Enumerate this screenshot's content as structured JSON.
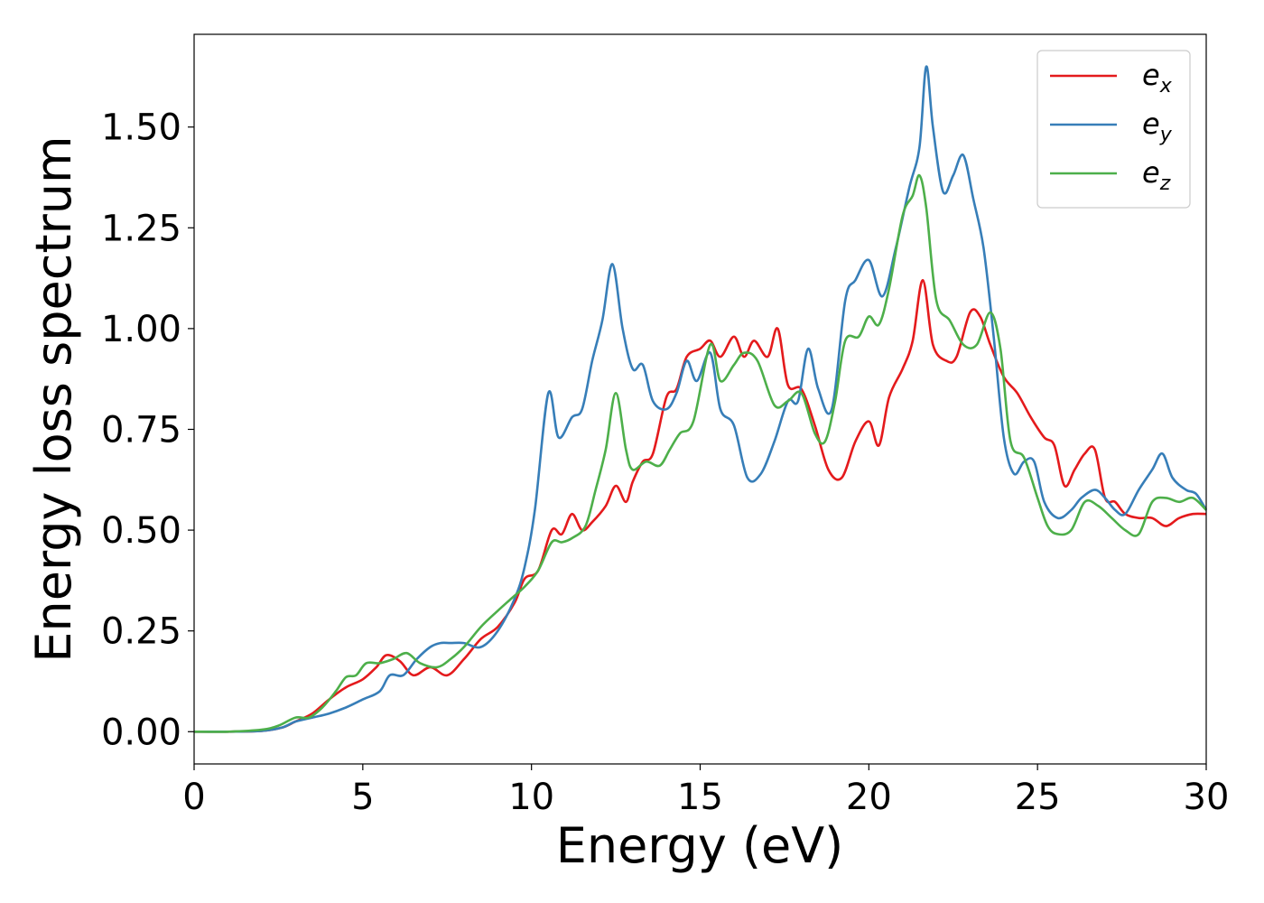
{
  "chart_data": {
    "type": "line",
    "xlabel": "Energy (eV)",
    "ylabel": "Energy loss spectrum",
    "xlim": [
      0,
      30
    ],
    "ylim": [
      -0.08,
      1.73
    ],
    "xticks": [
      0,
      5,
      10,
      15,
      20,
      25,
      30
    ],
    "yticks": [
      0.0,
      0.25,
      0.5,
      0.75,
      1.0,
      1.25,
      1.5
    ],
    "xtick_labels": [
      "0",
      "5",
      "10",
      "15",
      "20",
      "25",
      "30"
    ],
    "ytick_labels": [
      "0.00",
      "0.25",
      "0.50",
      "0.75",
      "1.00",
      "1.25",
      "1.50"
    ],
    "grid": false,
    "legend_position": "top-right",
    "series": [
      {
        "name": "e",
        "sub": "x",
        "color": "#e41a1c",
        "points": [
          [
            0,
            0
          ],
          [
            1,
            0
          ],
          [
            2,
            0.002
          ],
          [
            2.6,
            0.01
          ],
          [
            3,
            0.025
          ],
          [
            3.5,
            0.045
          ],
          [
            4,
            0.08
          ],
          [
            4.5,
            0.11
          ],
          [
            5,
            0.13
          ],
          [
            5.4,
            0.16
          ],
          [
            5.7,
            0.19
          ],
          [
            6.1,
            0.175
          ],
          [
            6.5,
            0.14
          ],
          [
            7,
            0.16
          ],
          [
            7.5,
            0.14
          ],
          [
            8,
            0.18
          ],
          [
            8.5,
            0.23
          ],
          [
            9,
            0.26
          ],
          [
            9.5,
            0.32
          ],
          [
            9.8,
            0.38
          ],
          [
            10.2,
            0.4
          ],
          [
            10.6,
            0.5
          ],
          [
            10.9,
            0.49
          ],
          [
            11.2,
            0.54
          ],
          [
            11.5,
            0.5
          ],
          [
            11.8,
            0.52
          ],
          [
            12.2,
            0.56
          ],
          [
            12.5,
            0.61
          ],
          [
            12.8,
            0.57
          ],
          [
            13,
            0.62
          ],
          [
            13.3,
            0.67
          ],
          [
            13.6,
            0.69
          ],
          [
            14,
            0.83
          ],
          [
            14.3,
            0.85
          ],
          [
            14.6,
            0.93
          ],
          [
            15,
            0.95
          ],
          [
            15.3,
            0.97
          ],
          [
            15.6,
            0.93
          ],
          [
            16,
            0.98
          ],
          [
            16.3,
            0.93
          ],
          [
            16.6,
            0.97
          ],
          [
            17,
            0.93
          ],
          [
            17.3,
            1.0
          ],
          [
            17.6,
            0.86
          ],
          [
            18,
            0.85
          ],
          [
            18.4,
            0.76
          ],
          [
            18.8,
            0.65
          ],
          [
            19.2,
            0.63
          ],
          [
            19.6,
            0.72
          ],
          [
            20,
            0.77
          ],
          [
            20.3,
            0.71
          ],
          [
            20.6,
            0.83
          ],
          [
            21,
            0.9
          ],
          [
            21.3,
            0.97
          ],
          [
            21.6,
            1.12
          ],
          [
            21.9,
            0.96
          ],
          [
            22.3,
            0.92
          ],
          [
            22.6,
            0.93
          ],
          [
            23,
            1.04
          ],
          [
            23.3,
            1.03
          ],
          [
            23.6,
            0.96
          ],
          [
            24,
            0.88
          ],
          [
            24.4,
            0.84
          ],
          [
            24.8,
            0.78
          ],
          [
            25.2,
            0.73
          ],
          [
            25.5,
            0.71
          ],
          [
            25.8,
            0.61
          ],
          [
            26.1,
            0.65
          ],
          [
            26.4,
            0.69
          ],
          [
            26.7,
            0.7
          ],
          [
            27,
            0.58
          ],
          [
            27.3,
            0.57
          ],
          [
            27.6,
            0.54
          ],
          [
            28,
            0.53
          ],
          [
            28.4,
            0.53
          ],
          [
            28.8,
            0.51
          ],
          [
            29.2,
            0.53
          ],
          [
            29.6,
            0.54
          ],
          [
            30,
            0.54
          ]
        ]
      },
      {
        "name": "e",
        "sub": "y",
        "color": "#377eb8",
        "points": [
          [
            0,
            0
          ],
          [
            1,
            0
          ],
          [
            2,
            0.002
          ],
          [
            2.6,
            0.01
          ],
          [
            3,
            0.025
          ],
          [
            3.5,
            0.035
          ],
          [
            4,
            0.045
          ],
          [
            4.5,
            0.06
          ],
          [
            5,
            0.08
          ],
          [
            5.5,
            0.1
          ],
          [
            5.8,
            0.14
          ],
          [
            6.2,
            0.14
          ],
          [
            6.6,
            0.18
          ],
          [
            7,
            0.21
          ],
          [
            7.3,
            0.22
          ],
          [
            7.6,
            0.22
          ],
          [
            8,
            0.22
          ],
          [
            8.5,
            0.21
          ],
          [
            9,
            0.25
          ],
          [
            9.5,
            0.33
          ],
          [
            9.8,
            0.41
          ],
          [
            10.1,
            0.55
          ],
          [
            10.5,
            0.84
          ],
          [
            10.8,
            0.73
          ],
          [
            11.2,
            0.78
          ],
          [
            11.5,
            0.8
          ],
          [
            11.8,
            0.92
          ],
          [
            12.1,
            1.02
          ],
          [
            12.4,
            1.16
          ],
          [
            12.7,
            1.0
          ],
          [
            13,
            0.9
          ],
          [
            13.3,
            0.91
          ],
          [
            13.6,
            0.82
          ],
          [
            14,
            0.8
          ],
          [
            14.3,
            0.84
          ],
          [
            14.6,
            0.92
          ],
          [
            14.9,
            0.87
          ],
          [
            15.3,
            0.94
          ],
          [
            15.6,
            0.8
          ],
          [
            16,
            0.76
          ],
          [
            16.4,
            0.63
          ],
          [
            16.8,
            0.64
          ],
          [
            17.2,
            0.72
          ],
          [
            17.6,
            0.82
          ],
          [
            17.9,
            0.82
          ],
          [
            18.2,
            0.95
          ],
          [
            18.5,
            0.85
          ],
          [
            18.9,
            0.8
          ],
          [
            19.3,
            1.07
          ],
          [
            19.6,
            1.12
          ],
          [
            20,
            1.17
          ],
          [
            20.4,
            1.08
          ],
          [
            20.8,
            1.2
          ],
          [
            21.2,
            1.35
          ],
          [
            21.5,
            1.45
          ],
          [
            21.7,
            1.65
          ],
          [
            21.9,
            1.5
          ],
          [
            22.2,
            1.34
          ],
          [
            22.5,
            1.38
          ],
          [
            22.8,
            1.43
          ],
          [
            23.1,
            1.32
          ],
          [
            23.4,
            1.2
          ],
          [
            23.7,
            0.98
          ],
          [
            24,
            0.73
          ],
          [
            24.3,
            0.64
          ],
          [
            24.6,
            0.67
          ],
          [
            24.9,
            0.67
          ],
          [
            25.2,
            0.57
          ],
          [
            25.6,
            0.53
          ],
          [
            26,
            0.55
          ],
          [
            26.3,
            0.58
          ],
          [
            26.7,
            0.6
          ],
          [
            27,
            0.58
          ],
          [
            27.3,
            0.55
          ],
          [
            27.6,
            0.54
          ],
          [
            28,
            0.6
          ],
          [
            28.4,
            0.65
          ],
          [
            28.7,
            0.69
          ],
          [
            29,
            0.63
          ],
          [
            29.4,
            0.6
          ],
          [
            29.7,
            0.59
          ],
          [
            30,
            0.55
          ]
        ]
      },
      {
        "name": "e",
        "sub": "z",
        "color": "#4daf4a",
        "points": [
          [
            0,
            0
          ],
          [
            1,
            0
          ],
          [
            2,
            0.005
          ],
          [
            2.5,
            0.015
          ],
          [
            3,
            0.035
          ],
          [
            3.4,
            0.035
          ],
          [
            3.8,
            0.06
          ],
          [
            4.2,
            0.1
          ],
          [
            4.5,
            0.135
          ],
          [
            4.8,
            0.14
          ],
          [
            5.1,
            0.17
          ],
          [
            5.5,
            0.17
          ],
          [
            5.9,
            0.18
          ],
          [
            6.3,
            0.195
          ],
          [
            6.7,
            0.17
          ],
          [
            7.2,
            0.16
          ],
          [
            7.6,
            0.18
          ],
          [
            8,
            0.21
          ],
          [
            8.5,
            0.26
          ],
          [
            9,
            0.3
          ],
          [
            9.4,
            0.33
          ],
          [
            9.8,
            0.36
          ],
          [
            10.2,
            0.4
          ],
          [
            10.6,
            0.47
          ],
          [
            10.9,
            0.47
          ],
          [
            11.2,
            0.48
          ],
          [
            11.6,
            0.51
          ],
          [
            11.9,
            0.6
          ],
          [
            12.2,
            0.7
          ],
          [
            12.5,
            0.84
          ],
          [
            12.8,
            0.7
          ],
          [
            13,
            0.65
          ],
          [
            13.4,
            0.67
          ],
          [
            13.8,
            0.66
          ],
          [
            14.1,
            0.7
          ],
          [
            14.4,
            0.74
          ],
          [
            14.8,
            0.77
          ],
          [
            15.3,
            0.96
          ],
          [
            15.6,
            0.87
          ],
          [
            16,
            0.91
          ],
          [
            16.3,
            0.94
          ],
          [
            16.7,
            0.92
          ],
          [
            17.2,
            0.81
          ],
          [
            17.6,
            0.82
          ],
          [
            18,
            0.84
          ],
          [
            18.4,
            0.74
          ],
          [
            18.7,
            0.72
          ],
          [
            19,
            0.82
          ],
          [
            19.3,
            0.97
          ],
          [
            19.7,
            0.98
          ],
          [
            20,
            1.03
          ],
          [
            20.3,
            1.01
          ],
          [
            20.6,
            1.1
          ],
          [
            21,
            1.28
          ],
          [
            21.3,
            1.33
          ],
          [
            21.5,
            1.38
          ],
          [
            21.7,
            1.3
          ],
          [
            22,
            1.07
          ],
          [
            22.4,
            1.02
          ],
          [
            22.8,
            0.96
          ],
          [
            23.2,
            0.96
          ],
          [
            23.6,
            1.04
          ],
          [
            23.9,
            0.95
          ],
          [
            24.2,
            0.72
          ],
          [
            24.6,
            0.68
          ],
          [
            25,
            0.58
          ],
          [
            25.3,
            0.51
          ],
          [
            25.6,
            0.49
          ],
          [
            26,
            0.5
          ],
          [
            26.4,
            0.57
          ],
          [
            26.8,
            0.56
          ],
          [
            27.2,
            0.53
          ],
          [
            27.6,
            0.5
          ],
          [
            28,
            0.49
          ],
          [
            28.4,
            0.57
          ],
          [
            28.8,
            0.58
          ],
          [
            29.2,
            0.57
          ],
          [
            29.6,
            0.58
          ],
          [
            30,
            0.55
          ]
        ]
      }
    ]
  }
}
